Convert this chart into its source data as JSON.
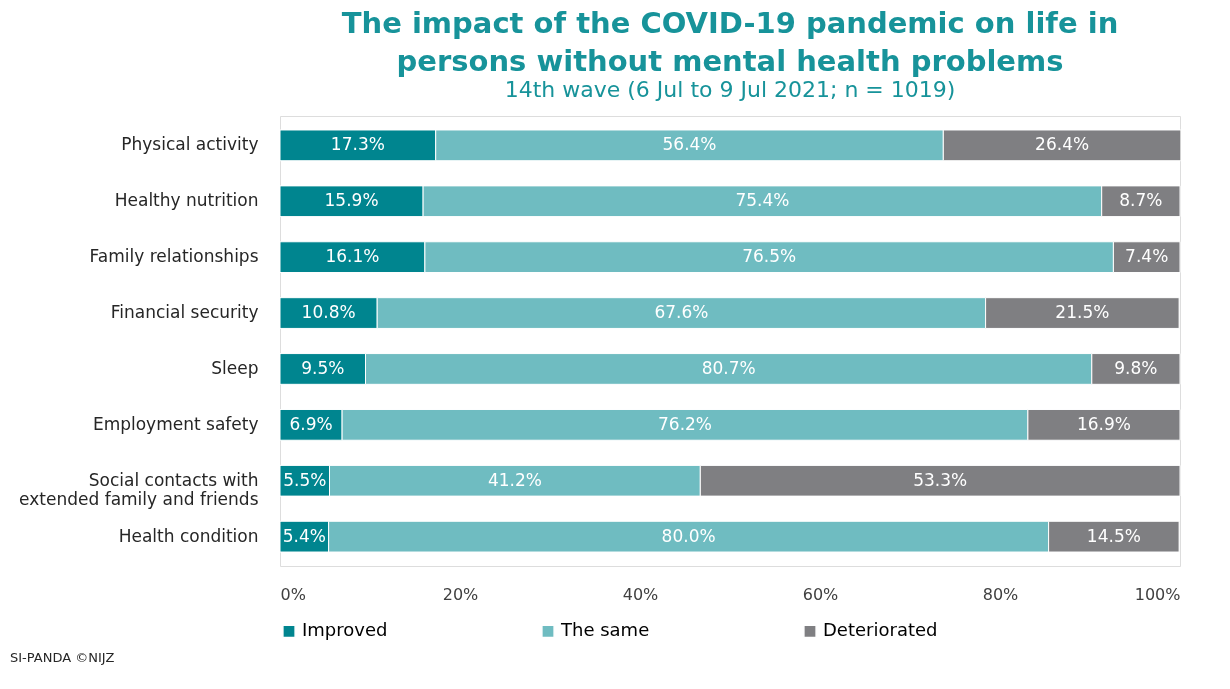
{
  "chart_data": {
    "type": "bar",
    "orientation": "horizontal",
    "stacked": true,
    "title": "The impact of the COVID-19 pandemic on life in persons without mental health problems",
    "subtitle": "14th wave (6 Jul to 9 Jul 2021; n = 1019)",
    "categories": [
      "Physical activity",
      "Healthy nutrition",
      "Family relationships",
      "Financial security",
      "Sleep",
      "Employment safety",
      "Social contacts with extended family and friends",
      "Health condition"
    ],
    "series": [
      {
        "name": "Improved",
        "color": "#00858f",
        "values": [
          17.3,
          15.9,
          16.1,
          10.8,
          9.5,
          6.9,
          5.5,
          5.4
        ],
        "value_labels": [
          "17.3%",
          "15.9%",
          "16.1%",
          "10.8%",
          "9.5%",
          "6.9%",
          "5.5%",
          "5.4%"
        ]
      },
      {
        "name": "The same",
        "color": "#6fbcc1",
        "values": [
          56.4,
          75.4,
          76.5,
          67.6,
          80.7,
          76.2,
          41.2,
          80.0
        ],
        "value_labels": [
          "56.4%",
          "75.4%",
          "76.5%",
          "67.6%",
          "80.7%",
          "76.2%",
          "41.2%",
          "80.0%"
        ]
      },
      {
        "name": "Deteriorated",
        "color": "#7f7f82",
        "values": [
          26.4,
          8.7,
          7.4,
          21.5,
          9.8,
          16.9,
          53.3,
          14.5
        ],
        "value_labels": [
          "26.4%",
          "8.7%",
          "7.4%",
          "21.5%",
          "9.8%",
          "16.9%",
          "53.3%",
          "14.5%"
        ]
      }
    ],
    "xlim": [
      0,
      100
    ],
    "xticks": [
      {
        "value": 0,
        "label": "0%"
      },
      {
        "value": 20,
        "label": "20%"
      },
      {
        "value": 40,
        "label": "40%"
      },
      {
        "value": 60,
        "label": "60%"
      },
      {
        "value": 80,
        "label": "80%"
      },
      {
        "value": 100,
        "label": "100%"
      }
    ],
    "grid": false,
    "legend": "bottom",
    "annotations": [
      "SI-PANDA ©NIJZ"
    ]
  }
}
